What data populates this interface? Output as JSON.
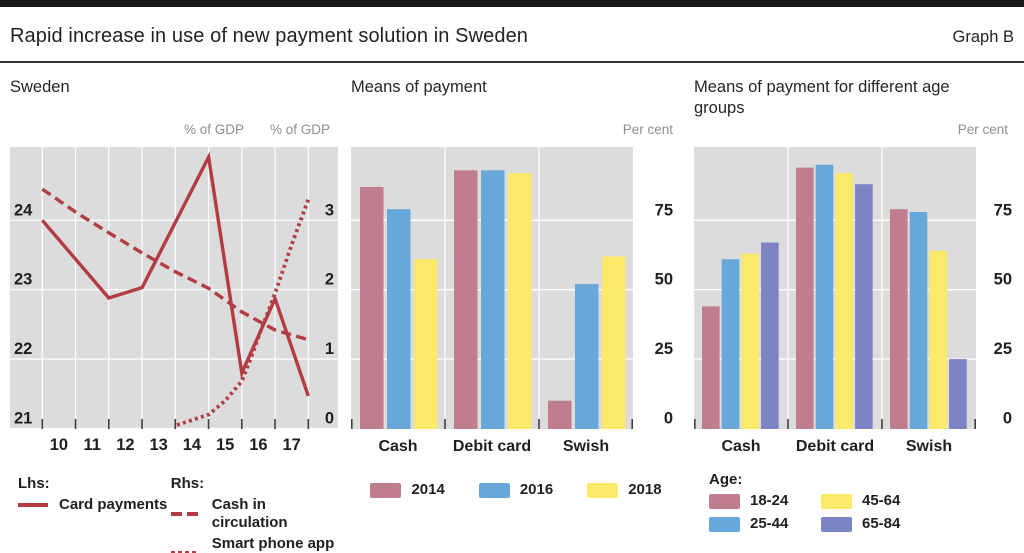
{
  "page": {
    "title": "Rapid increase in use of new payment solution in Sweden",
    "graph_label": "Graph B"
  },
  "colors": {
    "accent_red": "#b13c42",
    "bar_pink": "#bf7d8e",
    "bar_blue": "#67a7da",
    "bar_yellow": "#fbe96a",
    "bar_purple": "#7d84c3",
    "plot_bg": "#dcdcdc",
    "grid": "#ffffff",
    "tick": "#3f3f3f",
    "text_dark": "#1f1f1f",
    "text_gray": "#8e8e8e"
  },
  "panels": {
    "sweden": {
      "legend": {
        "lhs_header": "Lhs:",
        "rhs_header": "Rhs:",
        "swish_display": "Smart phone app\n(Swish)"
      }
    },
    "age": {
      "legend_header": "Age:"
    }
  },
  "chart_data": [
    {
      "type": "line",
      "title": "Sweden",
      "axes": {
        "left_unit": "% of GDP",
        "right_unit": "% of GDP",
        "left_ticks": [
          24,
          23,
          22,
          21
        ],
        "right_ticks": [
          3,
          2,
          1,
          0
        ],
        "left_range": [
          21,
          25.05
        ],
        "right_range": [
          0,
          4.05
        ]
      },
      "x_tick_labels": [
        "10",
        "11",
        "12",
        "13",
        "14",
        "15",
        "16",
        "17"
      ],
      "series": [
        {
          "name": "Card payments",
          "axis": "lhs",
          "style": "solid",
          "points": [
            [
              0,
              24.0
            ],
            [
              2,
              22.88
            ],
            [
              3,
              23.03
            ],
            [
              5,
              24.91
            ],
            [
              6,
              21.8
            ],
            [
              7,
              22.87
            ],
            [
              8,
              21.47
            ]
          ]
        },
        {
          "name": "Cash in circulation",
          "axis": "rhs",
          "style": "dashed",
          "points": [
            [
              0,
              3.45
            ],
            [
              1,
              3.12
            ],
            [
              2,
              2.82
            ],
            [
              3,
              2.53
            ],
            [
              4,
              2.26
            ],
            [
              5,
              2.02
            ],
            [
              6,
              1.68
            ],
            [
              7,
              1.42
            ],
            [
              8,
              1.28
            ]
          ]
        },
        {
          "name": "Smart phone app (Swish)",
          "axis": "rhs",
          "style": "dotted",
          "points": [
            [
              4.05,
              0.05
            ],
            [
              5,
              0.2
            ],
            [
              5.5,
              0.4
            ],
            [
              6,
              0.68
            ],
            [
              6.3,
              1.05
            ],
            [
              6.6,
              1.45
            ],
            [
              7,
              1.95
            ],
            [
              7.5,
              2.65
            ],
            [
              8,
              3.3
            ]
          ]
        }
      ]
    },
    {
      "type": "bar",
      "title": "Means of payment",
      "unit": "Per cent",
      "categories": [
        "Cash",
        "Debit card",
        "Swish"
      ],
      "yticks": [
        75,
        50,
        25,
        0
      ],
      "ylim": [
        0,
        99
      ],
      "series": [
        {
          "name": "2014",
          "color": "#bf7d8e",
          "values": [
            87,
            93,
            10
          ]
        },
        {
          "name": "2016",
          "color": "#67a7da",
          "values": [
            79,
            93,
            52
          ]
        },
        {
          "name": "2018",
          "color": "#fbe96a",
          "values": [
            61,
            92,
            62
          ]
        }
      ]
    },
    {
      "type": "bar",
      "title": "Means of payment for different age groups",
      "unit": "Per cent",
      "categories": [
        "Cash",
        "Debit card",
        "Swish"
      ],
      "yticks": [
        75,
        50,
        25,
        0
      ],
      "ylim": [
        0,
        99
      ],
      "series": [
        {
          "name": "18-24",
          "color": "#bf7d8e",
          "values": [
            44,
            94,
            79
          ]
        },
        {
          "name": "25-44",
          "color": "#67a7da",
          "values": [
            61,
            95,
            78
          ]
        },
        {
          "name": "45-64",
          "color": "#fbe96a",
          "values": [
            63,
            92,
            64
          ]
        },
        {
          "name": "65-84",
          "color": "#7d84c3",
          "values": [
            67,
            88,
            25
          ]
        }
      ]
    }
  ]
}
